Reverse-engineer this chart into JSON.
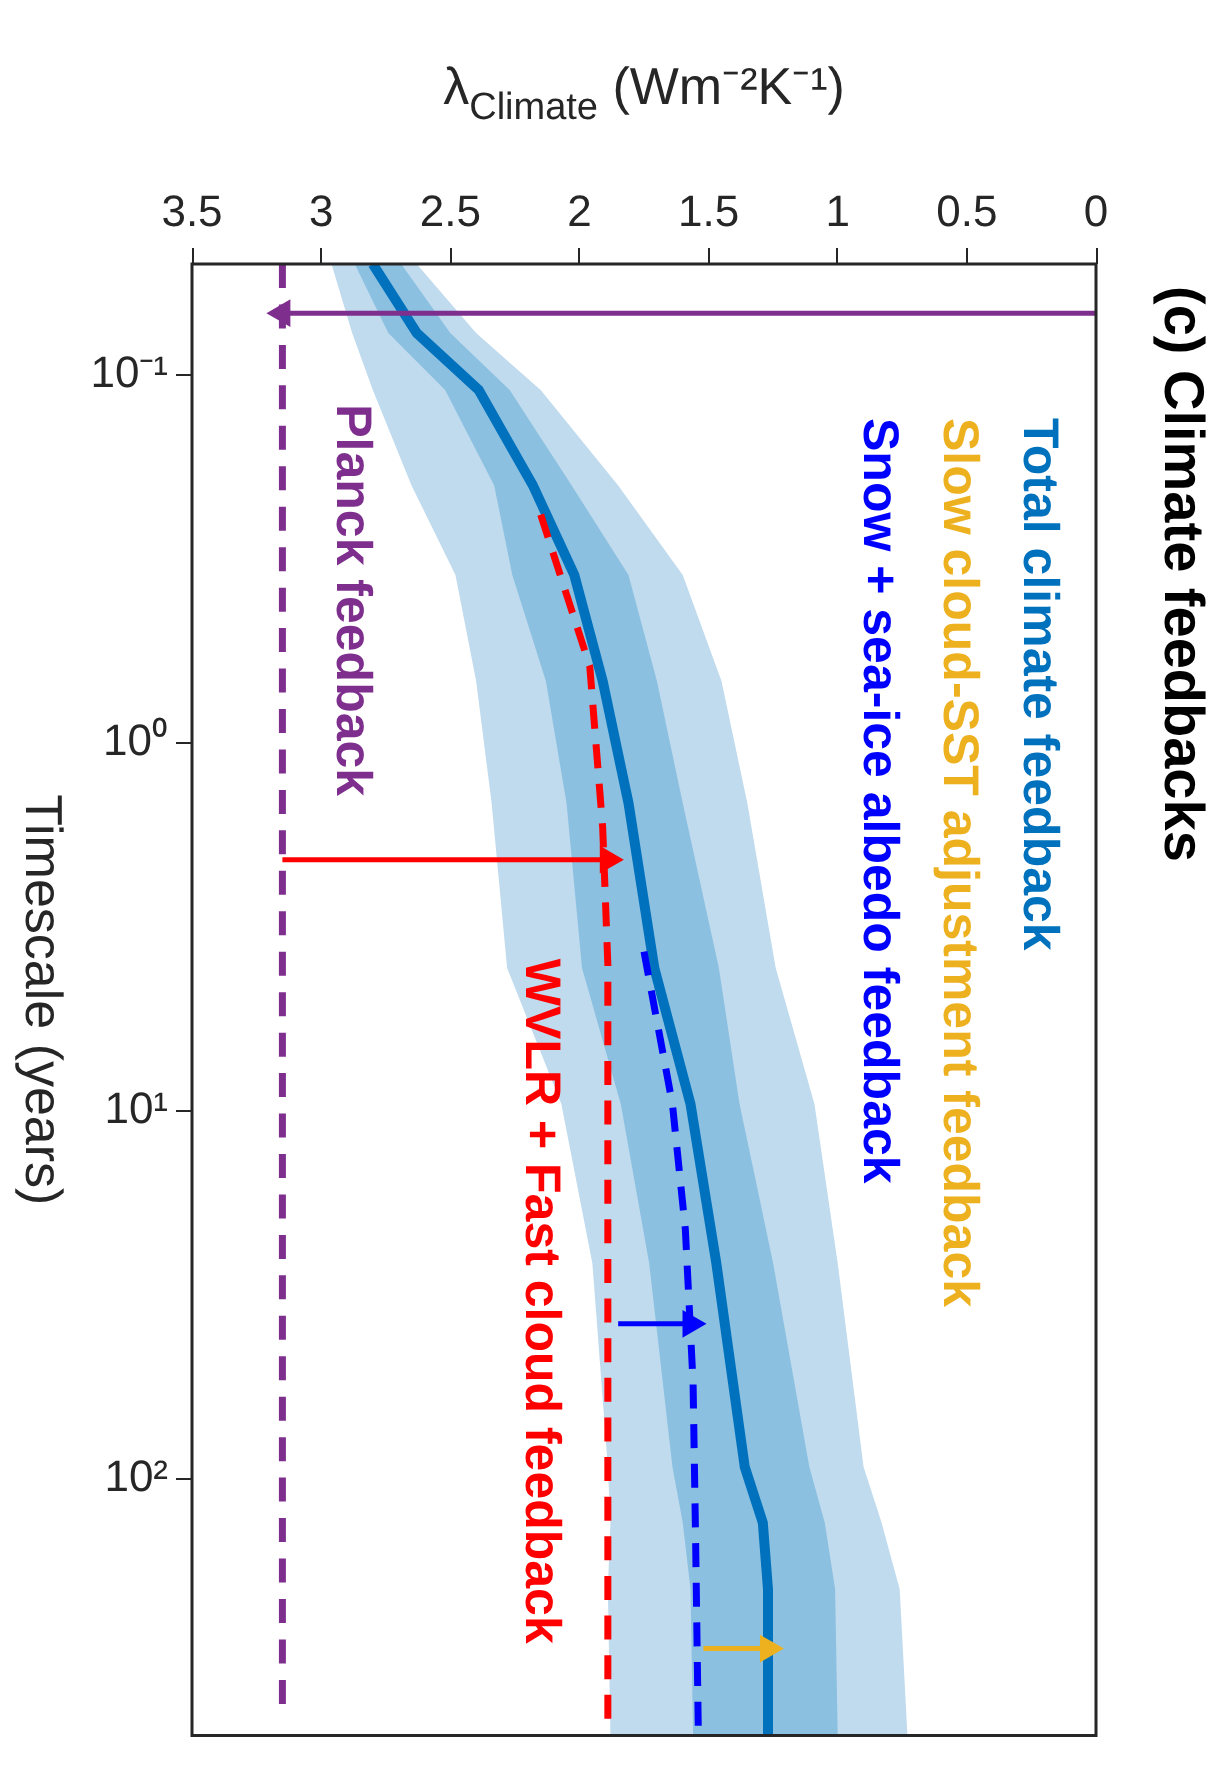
{
  "chart_data": {
    "type": "line",
    "orientation": "horizontal",
    "title": "(c) Climate feedbacks",
    "xlabel": "λ$_{Climate}$ (Wm⁻²K⁻¹)",
    "ylabel": "Timescale (years)",
    "log": "y",
    "ylim": [
      500,
      0.05
    ],
    "yticks": [
      {
        "value": 0.1,
        "label": "10⁻¹"
      },
      {
        "value": 1,
        "label": "10⁰"
      },
      {
        "value": 10,
        "label": "10¹"
      },
      {
        "value": 100,
        "label": "10²"
      }
    ],
    "xlim": [
      3.5,
      0
    ],
    "xticks": [
      3.5,
      3,
      2.5,
      2,
      1.5,
      1,
      0.5,
      0
    ],
    "grid": false,
    "legend": "top right",
    "x": [
      0.05,
      0.077,
      0.11,
      0.2,
      0.35,
      0.68,
      1.46,
      4.1,
      9.6,
      26,
      93,
      132,
      200,
      500
    ],
    "series": [
      {
        "name": "Total climate feedback",
        "color": "#0072bd",
        "values": [
          2.8,
          2.63,
          2.39,
          2.18,
          2.02,
          1.91,
          1.81,
          1.71,
          1.57,
          1.47,
          1.36,
          1.29,
          1.27,
          1.27
        ],
        "lower": [
          2.69,
          2.5,
          2.27,
          2.03,
          1.81,
          1.7,
          1.6,
          1.46,
          1.38,
          1.25,
          1.11,
          1.05,
          1.01,
          1.0
        ],
        "upper": [
          2.87,
          2.74,
          2.52,
          2.33,
          2.26,
          2.13,
          2.05,
          1.99,
          1.84,
          1.73,
          1.64,
          1.6,
          1.57,
          1.56
        ]
      },
      {
        "color": "#c0dbee",
        "values": [
          null,
          null,
          null,
          null,
          null,
          null,
          null,
          null,
          null,
          null,
          null,
          null,
          null,
          null
        ],
        "lower": [
          2.63,
          2.4,
          2.15,
          1.85,
          1.6,
          1.45,
          1.35,
          1.24,
          1.09,
          1.0,
          0.9,
          0.83,
          0.76,
          0.73
        ],
        "upper": [
          2.96,
          2.88,
          2.8,
          2.65,
          2.48,
          2.4,
          2.34,
          2.28,
          2.07,
          1.95,
          1.89,
          1.88,
          1.89,
          1.88
        ]
      },
      {
        "name": "Slow cloud-SST adjustment feedback",
        "color": "#edb120",
        "values": [
          null,
          null,
          null,
          null,
          null,
          null,
          null,
          null,
          null,
          null,
          null,
          null,
          null,
          null
        ]
      },
      {
        "name": "Snow + sea-ice albedo feedback",
        "color": "#0000ff",
        "line_style": "dashed",
        "x": [
          3.7,
          9.6,
          21,
          55,
          150,
          470
        ],
        "values": [
          1.75,
          1.64,
          1.59,
          1.56,
          1.55,
          1.54
        ]
      },
      {
        "color": "#ff0000",
        "line_style": "dashed",
        "x": [
          0.24,
          0.62,
          1.7,
          4,
          450
        ],
        "values": [
          2.15,
          1.96,
          1.91,
          1.89,
          1.89
        ]
      },
      {
        "color": "#7e2f8e",
        "line_style": "dashed",
        "x": [
          0.05,
          410
        ],
        "values": [
          3.15,
          3.15
        ]
      },
      {
        "color": "#7e2f8e",
        "marker": "triangle",
        "x": [
          0.068,
          0.068
        ],
        "values": [
          0,
          3.15
        ]
      },
      {
        "color": "#ff0000",
        "marker": "triangle",
        "x": [
          2.08,
          2.08
        ],
        "values": [
          3.15,
          1.89
        ]
      },
      {
        "color": "#0000ff",
        "marker": "triangle",
        "x": [
          38,
          38
        ],
        "values": [
          1.85,
          1.57
        ]
      },
      {
        "color": "#edb120",
        "marker": "triangle",
        "x": [
          290,
          290
        ],
        "values": [
          1.52,
          1.27
        ]
      }
    ],
    "annotations": [
      {
        "text": "Planck feedback",
        "x": 3.15,
        "y": 0.41
      },
      {
        "text": "WVLR + Fast cloud feedback",
        "x": 1.89,
        "y": 33
      }
    ]
  }
}
